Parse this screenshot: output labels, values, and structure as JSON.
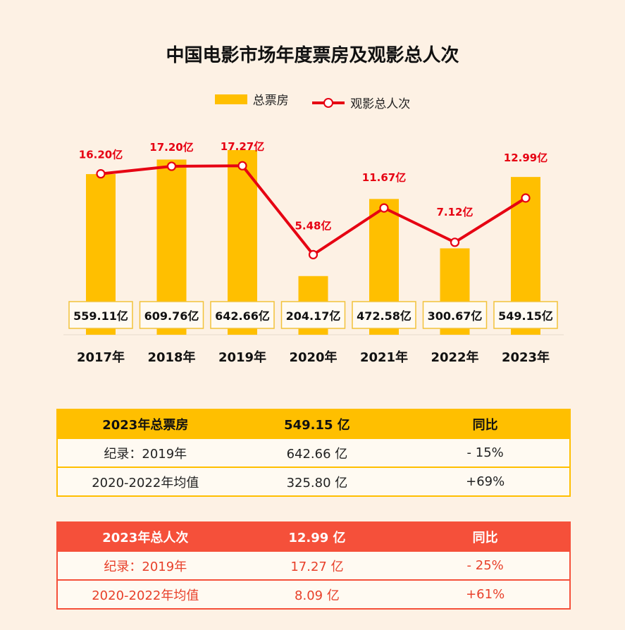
{
  "chart_data": {
    "type": "bar+line",
    "title": "中国电影市场年度票房及观影总人次",
    "categories": [
      "2017年",
      "2018年",
      "2019年",
      "2020年",
      "2021年",
      "2022年",
      "2023年"
    ],
    "series": [
      {
        "name": "总票房",
        "type": "bar",
        "values": [
          559.11,
          609.76,
          642.66,
          204.17,
          472.58,
          300.67,
          549.15
        ],
        "labels": [
          "559.11亿",
          "609.76亿",
          "642.66亿",
          "204.17亿",
          "472.58亿",
          "300.67亿",
          "549.15亿"
        ],
        "color": "#ffbf00"
      },
      {
        "name": "观影总人次",
        "type": "line",
        "values": [
          16.2,
          17.2,
          17.27,
          5.48,
          11.67,
          7.12,
          12.99
        ],
        "labels": [
          "16.20亿",
          "17.20亿",
          "17.27亿",
          "5.48亿",
          "11.67亿",
          "7.12亿",
          "12.99亿"
        ],
        "color": "#e60012"
      }
    ],
    "grid": false,
    "legend_position": "top-center"
  },
  "table_box_office": {
    "header": [
      "2023年总票房",
      "549.15 亿",
      "同比"
    ],
    "rows": [
      [
        "纪录：2019年",
        "642.66 亿",
        "- 15%"
      ],
      [
        "2020-2022年均值",
        "325.80 亿",
        "+69%"
      ]
    ]
  },
  "table_admissions": {
    "header": [
      "2023年总人次",
      "12.99 亿",
      "同比"
    ],
    "rows": [
      [
        "纪录：2019年",
        "17.27 亿",
        "- 25%"
      ],
      [
        "2020-2022年均值",
        "8.09 亿",
        "+61%"
      ]
    ]
  }
}
